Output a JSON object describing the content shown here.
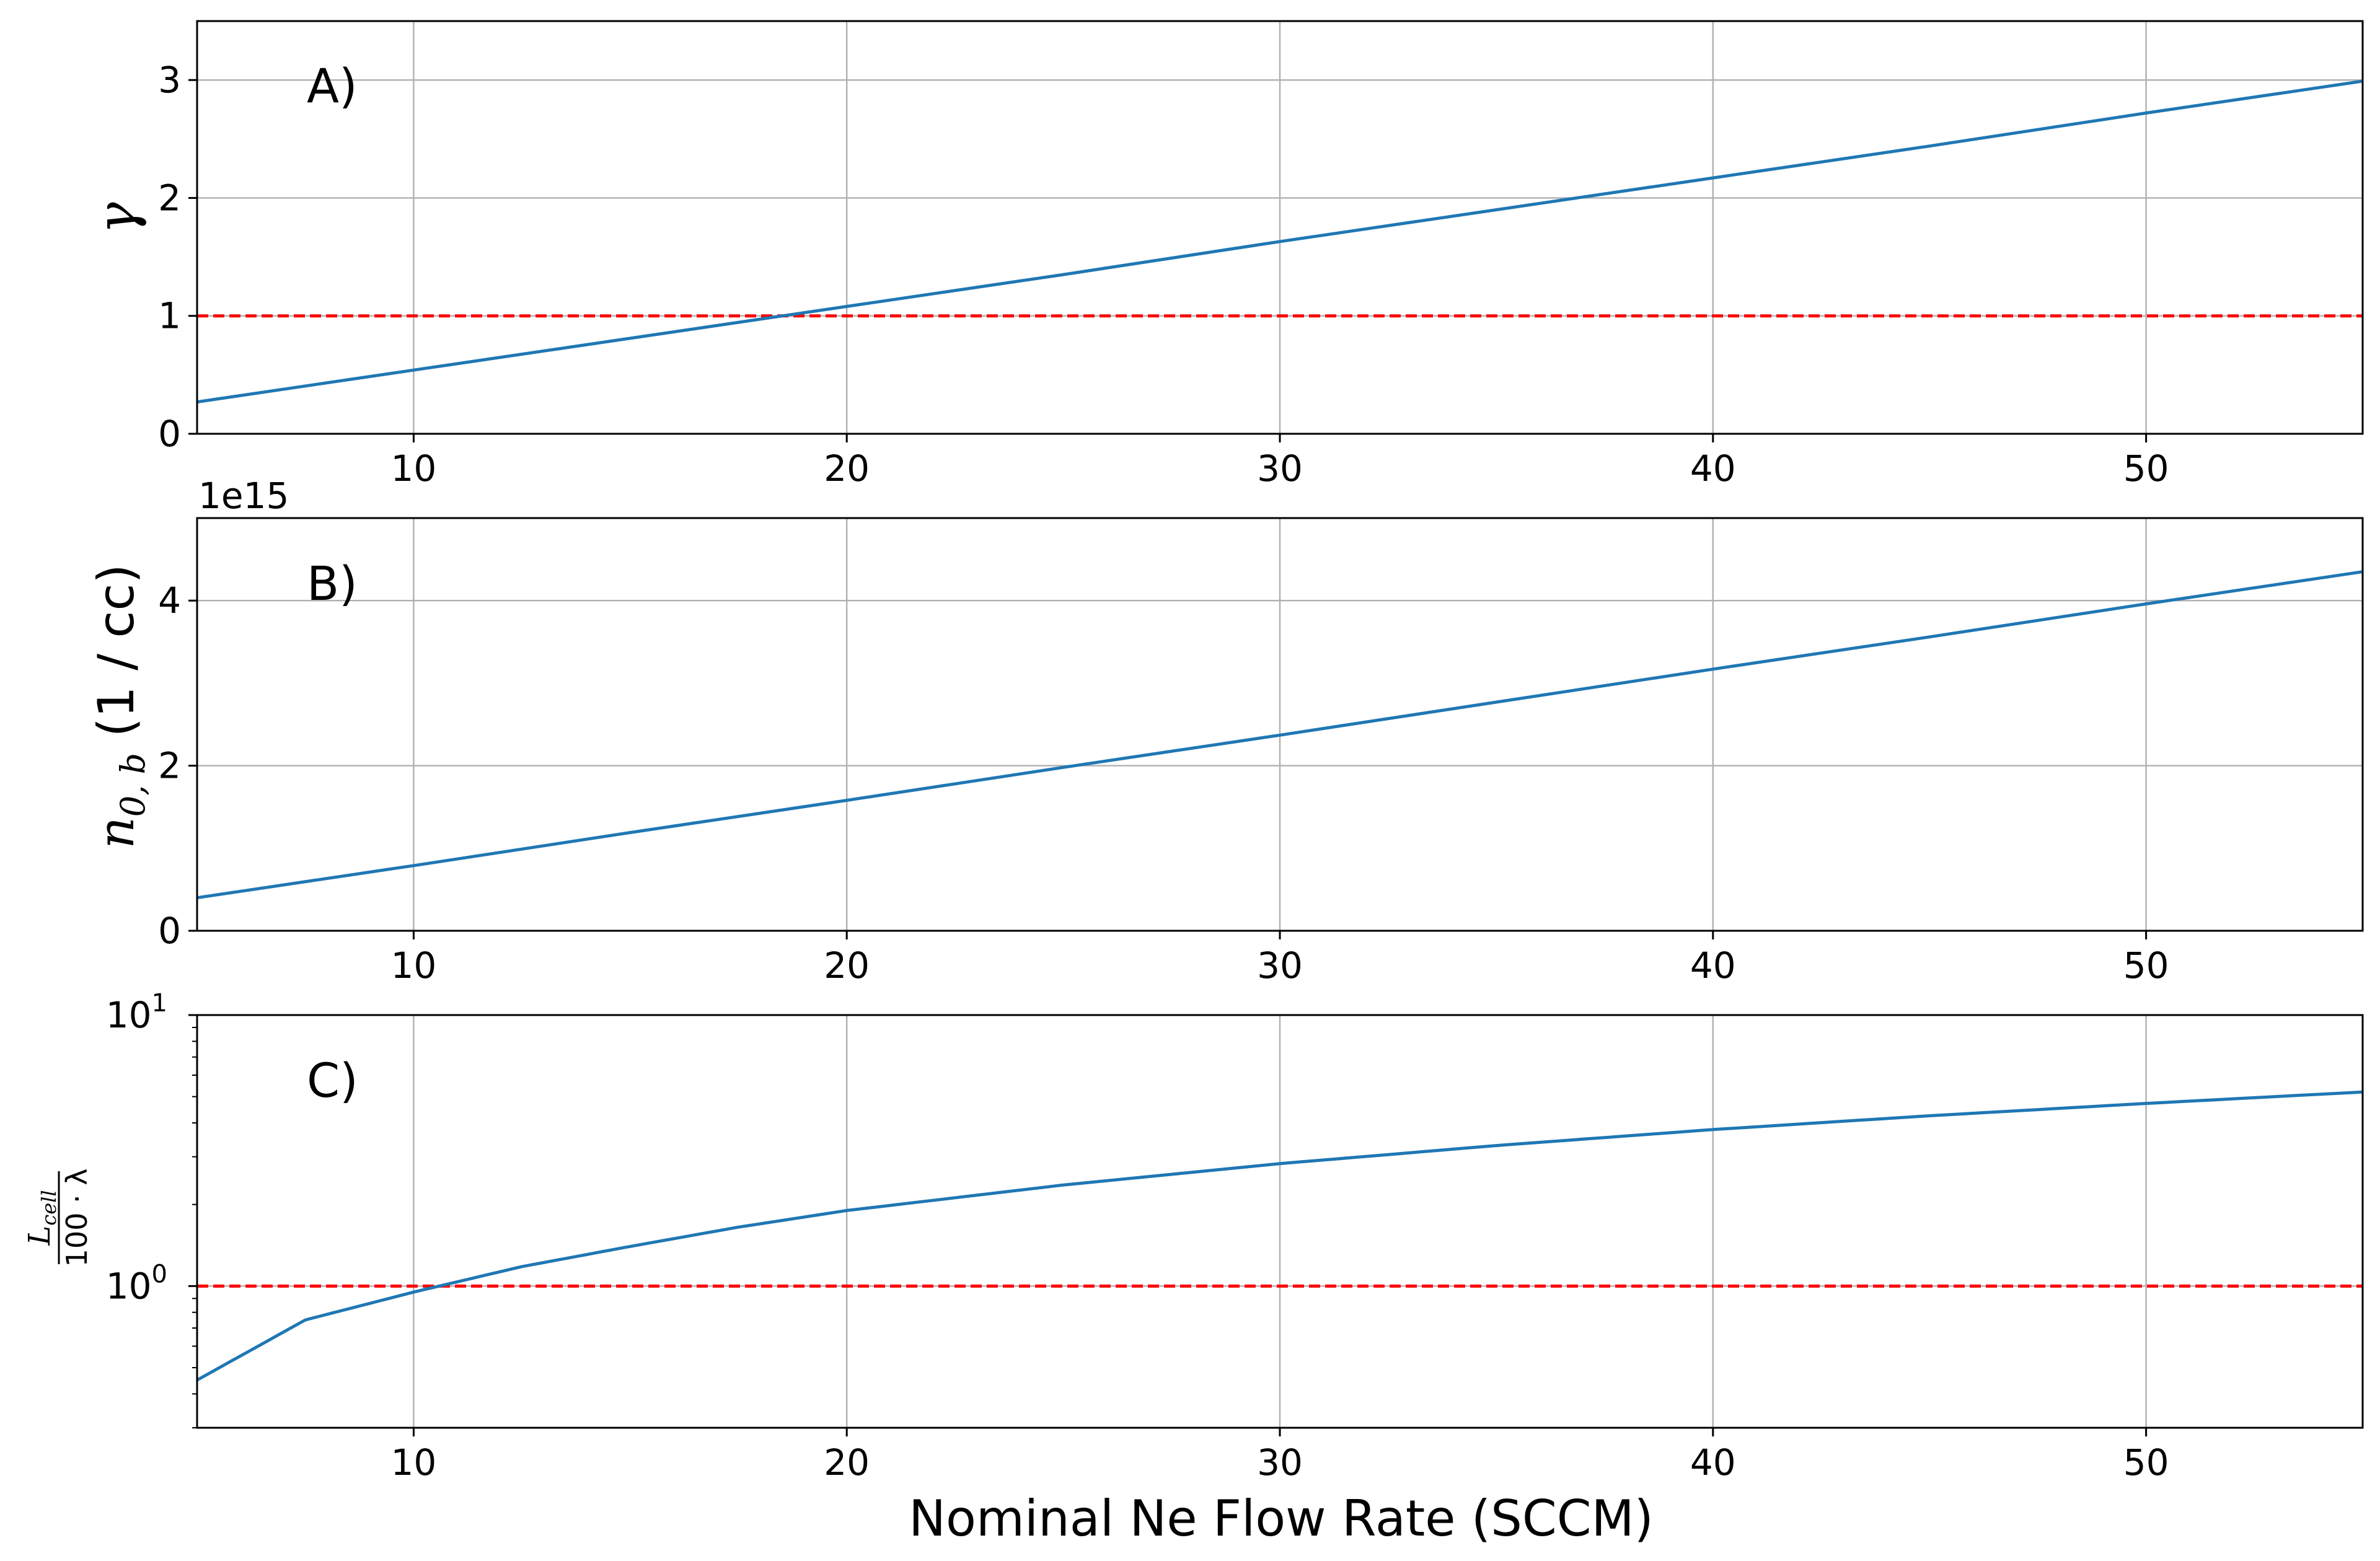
{
  "chart_data": [
    {
      "type": "line",
      "panel_label": "A)",
      "ylabel": "γ",
      "xlim": [
        5,
        55
      ],
      "ylim": [
        0,
        3.5
      ],
      "yticks": [
        0,
        1,
        2,
        3
      ],
      "xticks": [
        10,
        20,
        30,
        40,
        50
      ],
      "grid": true,
      "series": [
        {
          "x": [
            5,
            10,
            15,
            20,
            25,
            30,
            35,
            40,
            45,
            50,
            55
          ],
          "y": [
            0.27,
            0.54,
            0.81,
            1.08,
            1.35,
            1.63,
            1.9,
            2.17,
            2.44,
            2.72,
            2.99
          ],
          "color": "#1f77b4",
          "style": "solid"
        }
      ],
      "reference_line": {
        "y": 1,
        "color": "#ff0000",
        "style": "dashed"
      }
    },
    {
      "type": "line",
      "panel_label": "B)",
      "ylabel_main": "n",
      "ylabel_sub": "0, b",
      "ylabel_unit": " (1 / cc)",
      "offset_text": "1e15",
      "xlim": [
        5,
        55
      ],
      "ylim": [
        0,
        5
      ],
      "yticks": [
        0,
        2,
        4
      ],
      "xticks": [
        10,
        20,
        30,
        40,
        50
      ],
      "grid": true,
      "series": [
        {
          "x": [
            5,
            10,
            15,
            20,
            25,
            30,
            35,
            40,
            45,
            50,
            55
          ],
          "y": [
            0.4,
            0.79,
            1.19,
            1.58,
            1.98,
            2.37,
            2.77,
            3.17,
            3.56,
            3.96,
            4.35
          ],
          "color": "#1f77b4",
          "style": "solid"
        }
      ]
    },
    {
      "type": "line",
      "panel_label": "C)",
      "ylabel_num": "L",
      "ylabel_num_sub": "cell",
      "ylabel_den": "100 · λ",
      "xlabel": "Nominal Ne Flow Rate (SCCM)",
      "yscale": "log",
      "xlim": [
        5,
        55
      ],
      "ylim": [
        0.3,
        10
      ],
      "ytick_labels": [
        "10",
        "1",
        "10",
        "0"
      ],
      "yticks": [
        1,
        10
      ],
      "xticks": [
        10,
        20,
        30,
        40,
        50
      ],
      "grid": true,
      "series": [
        {
          "x": [
            5,
            7.5,
            10,
            12.5,
            15,
            17.5,
            20,
            25,
            30,
            35,
            40,
            45,
            50,
            55
          ],
          "y": [
            0.45,
            0.75,
            0.95,
            1.18,
            1.4,
            1.65,
            1.9,
            2.36,
            2.83,
            3.3,
            3.78,
            4.25,
            4.72,
            5.2
          ],
          "color": "#1f77b4",
          "style": "solid"
        }
      ],
      "reference_line": {
        "y": 1,
        "color": "#ff0000",
        "style": "dashed"
      }
    }
  ]
}
